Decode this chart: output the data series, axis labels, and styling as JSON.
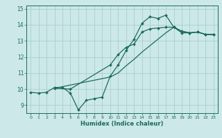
{
  "xlabel": "Humidex (Indice chaleur)",
  "background_color": "#cce8e8",
  "grid_color": "#aacece",
  "line_color": "#1a6b5a",
  "xlim": [
    -0.5,
    23.5
  ],
  "ylim": [
    8.5,
    15.2
  ],
  "xticks": [
    0,
    1,
    2,
    3,
    4,
    5,
    6,
    7,
    8,
    9,
    10,
    11,
    12,
    13,
    14,
    15,
    16,
    17,
    18,
    19,
    20,
    21,
    22,
    23
  ],
  "yticks": [
    9,
    10,
    11,
    12,
    13,
    14,
    15
  ],
  "line1_x": [
    0,
    1,
    2,
    3,
    4,
    5,
    6,
    7,
    8,
    9,
    10,
    11,
    12,
    13,
    14,
    15,
    16,
    17,
    18,
    19,
    20,
    21,
    22,
    23
  ],
  "line1_y": [
    9.8,
    9.75,
    9.8,
    10.1,
    10.1,
    9.75,
    8.7,
    9.3,
    9.4,
    9.5,
    10.8,
    11.5,
    12.4,
    13.1,
    14.1,
    14.5,
    14.4,
    14.6,
    13.85,
    13.5,
    13.5,
    13.55,
    13.4,
    13.4
  ],
  "line2_x": [
    3,
    5,
    10,
    11,
    12,
    13,
    14,
    15,
    16,
    17,
    18,
    19,
    20,
    21,
    22,
    23
  ],
  "line2_y": [
    10.05,
    10.0,
    11.5,
    12.15,
    12.6,
    12.8,
    13.55,
    13.75,
    13.8,
    13.85,
    13.85,
    13.6,
    13.5,
    13.55,
    13.4,
    13.4
  ],
  "line3_x": [
    3,
    10,
    11,
    12,
    13,
    14,
    15,
    16,
    17,
    18,
    19,
    20,
    21,
    22,
    23
  ],
  "line3_y": [
    10.05,
    10.75,
    11.0,
    11.45,
    11.85,
    12.3,
    12.7,
    13.1,
    13.5,
    13.85,
    13.6,
    13.5,
    13.55,
    13.4,
    13.4
  ]
}
